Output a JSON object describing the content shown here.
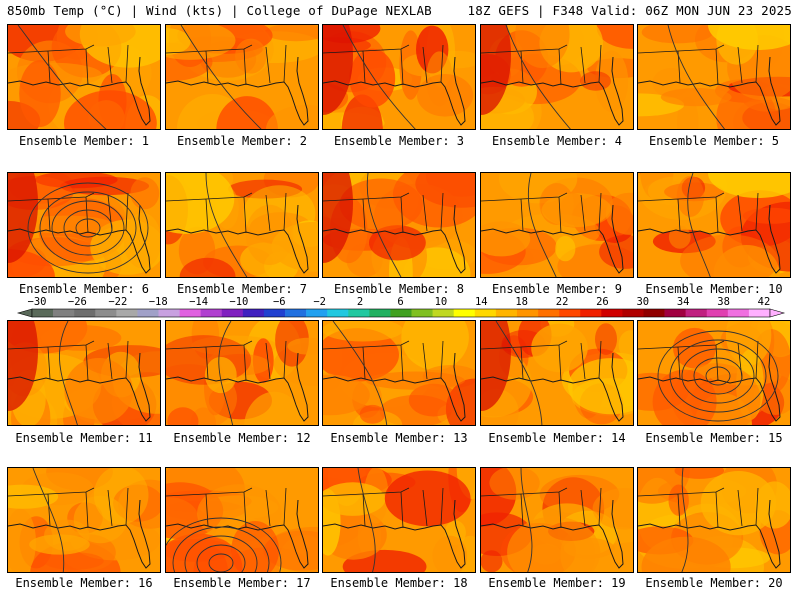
{
  "header": {
    "left_title": "850mb Temp (°C) | Wind (kts) | College of DuPage NEXLAB",
    "right_title": "18Z GEFS | F348 Valid: 06Z MON JUN 23 2025"
  },
  "colorbar": {
    "tick_labels": [
      "−30",
      "−26",
      "−22",
      "−18",
      "−14",
      "−10",
      "−6",
      "−2",
      "2",
      "6",
      "10",
      "14",
      "18",
      "22",
      "26",
      "30",
      "34",
      "38",
      "42"
    ],
    "colors": [
      "#5a6a5a",
      "#808080",
      "#6e6e6e",
      "#8c8c8c",
      "#a8a8a8",
      "#a0a0c8",
      "#c8a0e0",
      "#e060e0",
      "#b040d0",
      "#8020c0",
      "#4020c0",
      "#2040d0",
      "#2070e0",
      "#20a0f0",
      "#20c8e0",
      "#20c8a0",
      "#20b060",
      "#40a020",
      "#80c020",
      "#c0d820",
      "#ffff00",
      "#ffd800",
      "#ffb400",
      "#ff9400",
      "#ff7000",
      "#ff4800",
      "#f02000",
      "#d00000",
      "#b00000",
      "#900000",
      "#a00040",
      "#c02080",
      "#e040b0",
      "#f070e0",
      "#ffb0ff"
    ]
  },
  "panels": [
    {
      "label": "Ensemble Member: 1"
    },
    {
      "label": "Ensemble Member: 2"
    },
    {
      "label": "Ensemble Member: 3"
    },
    {
      "label": "Ensemble Member: 4"
    },
    {
      "label": "Ensemble Member: 5"
    },
    {
      "label": "Ensemble Member: 6"
    },
    {
      "label": "Ensemble Member: 7"
    },
    {
      "label": "Ensemble Member: 8"
    },
    {
      "label": "Ensemble Member: 9"
    },
    {
      "label": "Ensemble Member: 10"
    },
    {
      "label": "Ensemble Member: 11"
    },
    {
      "label": "Ensemble Member: 12"
    },
    {
      "label": "Ensemble Member: 13"
    },
    {
      "label": "Ensemble Member: 14"
    },
    {
      "label": "Ensemble Member: 15"
    },
    {
      "label": "Ensemble Member: 16"
    },
    {
      "label": "Ensemble Member: 17"
    },
    {
      "label": "Ensemble Member: 18"
    },
    {
      "label": "Ensemble Member: 19"
    },
    {
      "label": "Ensemble Member: 20"
    }
  ]
}
